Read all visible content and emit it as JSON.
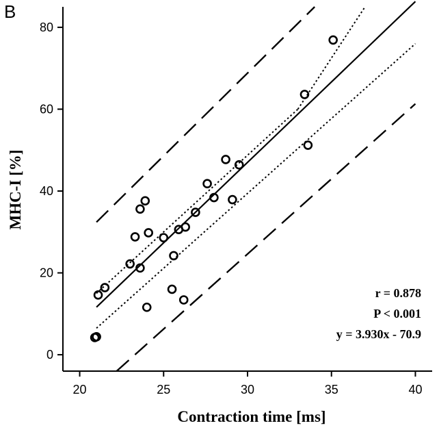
{
  "panel_label": "B",
  "chart_data": {
    "type": "scatter",
    "title": "",
    "xlabel": "Contraction time [ms]",
    "ylabel": "MHC-I [%]",
    "xlim": [
      19,
      41
    ],
    "ylim": [
      -4,
      85
    ],
    "x_ticks": [
      "20",
      "25",
      "30",
      "35",
      "40"
    ],
    "y_ticks": [
      "0",
      "20",
      "40",
      "60",
      "80"
    ],
    "grid": false,
    "points": [
      {
        "x": 20.9,
        "y": 4.2
      },
      {
        "x": 21.0,
        "y": 4.4
      },
      {
        "x": 21.1,
        "y": 14.6
      },
      {
        "x": 21.5,
        "y": 16.4
      },
      {
        "x": 23.0,
        "y": 22.2
      },
      {
        "x": 23.3,
        "y": 28.8
      },
      {
        "x": 23.6,
        "y": 21.2
      },
      {
        "x": 23.6,
        "y": 35.6
      },
      {
        "x": 23.9,
        "y": 37.6
      },
      {
        "x": 24.0,
        "y": 11.6
      },
      {
        "x": 24.1,
        "y": 29.8
      },
      {
        "x": 25.0,
        "y": 28.6
      },
      {
        "x": 25.5,
        "y": 16.0
      },
      {
        "x": 25.6,
        "y": 24.2
      },
      {
        "x": 25.9,
        "y": 30.6
      },
      {
        "x": 26.2,
        "y": 13.4
      },
      {
        "x": 26.3,
        "y": 31.2
      },
      {
        "x": 26.9,
        "y": 34.8
      },
      {
        "x": 27.6,
        "y": 41.8
      },
      {
        "x": 28.0,
        "y": 38.4
      },
      {
        "x": 28.7,
        "y": 47.7
      },
      {
        "x": 29.1,
        "y": 37.9
      },
      {
        "x": 29.5,
        "y": 46.4
      },
      {
        "x": 33.4,
        "y": 63.6
      },
      {
        "x": 33.6,
        "y": 51.2
      },
      {
        "x": 35.1,
        "y": 76.9
      }
    ],
    "regression": {
      "slope": 3.93,
      "intercept": -70.9,
      "x_range": [
        21.0,
        40.0
      ]
    },
    "confidence_band": {
      "upper": [
        [
          21.0,
          15.0
        ],
        [
          33.0,
          60.0
        ],
        [
          37.0,
          85.0
        ]
      ],
      "lower": [
        [
          21.0,
          6.5
        ],
        [
          40.0,
          76.0
        ]
      ]
    },
    "prediction_band": {
      "upper": [
        [
          21.0,
          32.4
        ],
        [
          34.0,
          85.0
        ]
      ],
      "lower": [
        [
          22.2,
          -4.0
        ],
        [
          40.0,
          61.3
        ]
      ]
    },
    "annotations": [
      "r = 0.878",
      "P < 0.001",
      "y = 3.930x - 70.9"
    ]
  }
}
